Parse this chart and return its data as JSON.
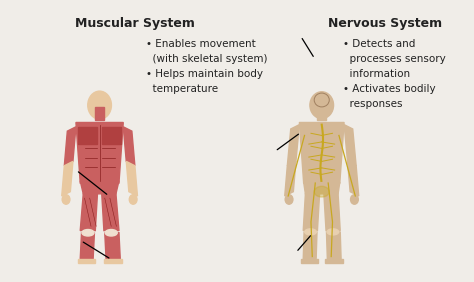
{
  "title_left": "Muscular System",
  "title_right": "Nervous System",
  "bullets_left": [
    "• Enables movement",
    "  (with skeletal system)",
    "• Helps maintain body",
    "  temperature"
  ],
  "bullets_right": [
    "• Detects and",
    "  processes sensory",
    "  information",
    "• Activates bodily",
    "  responses"
  ],
  "bg_color": "#f0ede8",
  "title_fontsize": 9,
  "text_fontsize": 7.5,
  "fig_bg": "#f0ede8"
}
